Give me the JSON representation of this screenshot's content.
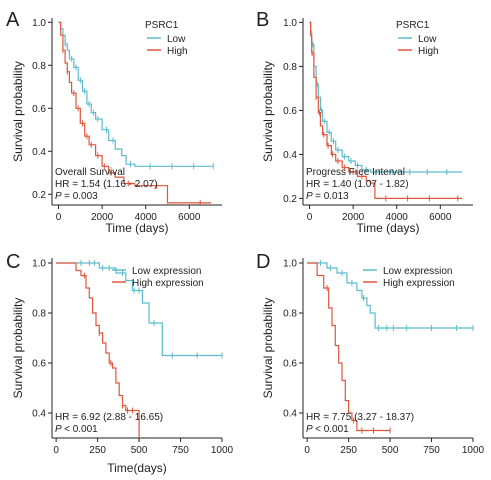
{
  "colors": {
    "low": "#5BBCCF",
    "high": "#E0553C",
    "axis": "#222222"
  },
  "chart_data": [
    {
      "type": "line",
      "panel_label": "A",
      "xlabel": "Time (days)",
      "ylabel": "Survival probability",
      "xlim": [
        -300,
        7500
      ],
      "ylim": [
        0.15,
        1.02
      ],
      "xticks": [
        0,
        2000,
        4000,
        6000
      ],
      "yticks": [
        0.2,
        0.4,
        0.6,
        0.8,
        1.0
      ],
      "ytick_labels": [
        "0.2",
        "0.4",
        "0.6",
        "0.8",
        "1.0"
      ],
      "legend": {
        "title": "PSRC1",
        "position": "top-right"
      },
      "annotation": [
        "Overall Survival",
        "HR = 1.54 (1.16 - 2.07)",
        "= 0.003"
      ],
      "series": [
        {
          "name": "Low",
          "color": "low",
          "x": [
            0,
            100,
            200,
            300,
            400,
            500,
            700,
            900,
            1100,
            1300,
            1500,
            1700,
            2000,
            2300,
            2600,
            2900,
            3100,
            3500,
            4000,
            5000,
            7100
          ],
          "y": [
            1.0,
            0.97,
            0.94,
            0.9,
            0.87,
            0.83,
            0.79,
            0.73,
            0.68,
            0.62,
            0.58,
            0.55,
            0.5,
            0.45,
            0.41,
            0.38,
            0.34,
            0.33,
            0.33,
            0.33,
            0.33
          ],
          "censored_x": [
            300,
            600,
            800,
            1000,
            1200,
            1400,
            1600,
            1800,
            2200,
            2500,
            3300,
            4200,
            5200,
            6200,
            7100
          ]
        },
        {
          "name": "High",
          "color": "high",
          "x": [
            0,
            100,
            200,
            300,
            400,
            500,
            600,
            800,
            1000,
            1200,
            1400,
            1700,
            2000,
            2300,
            2600,
            3000,
            3500,
            4000,
            5000,
            6000,
            7000
          ],
          "y": [
            1.0,
            0.94,
            0.87,
            0.81,
            0.77,
            0.72,
            0.67,
            0.6,
            0.53,
            0.47,
            0.43,
            0.38,
            0.33,
            0.3,
            0.28,
            0.25,
            0.24,
            0.24,
            0.16,
            0.16,
            0.16
          ],
          "censored_x": [
            200,
            400,
            700,
            900,
            1100,
            1300,
            1500,
            1800,
            2100,
            2400,
            3200,
            4500,
            6500
          ]
        }
      ]
    },
    {
      "type": "line",
      "panel_label": "B",
      "xlabel": "Time (days)",
      "ylabel": "Survival probability",
      "xlim": [
        -300,
        7500
      ],
      "ylim": [
        0.17,
        1.02
      ],
      "xticks": [
        0,
        2000,
        4000,
        6000
      ],
      "yticks": [
        0.2,
        0.4,
        0.6,
        0.8,
        1.0
      ],
      "ytick_labels": [
        "0.2",
        "0.4",
        "0.6",
        "0.8",
        "1.0"
      ],
      "legend": {
        "title": "PSRC1",
        "position": "top-right"
      },
      "annotation": [
        "Progress Free Interval",
        "HR = 1.40 (1.07 - 1.82)",
        "= 0.013"
      ],
      "series": [
        {
          "name": "Low",
          "color": "low",
          "x": [
            0,
            50,
            100,
            200,
            300,
            400,
            500,
            600,
            800,
            1000,
            1200,
            1500,
            1800,
            2100,
            2400,
            2800,
            3100,
            3500,
            4000,
            7000
          ],
          "y": [
            1.0,
            0.96,
            0.9,
            0.8,
            0.72,
            0.66,
            0.6,
            0.55,
            0.5,
            0.46,
            0.42,
            0.39,
            0.37,
            0.35,
            0.33,
            0.32,
            0.32,
            0.32,
            0.32,
            0.32
          ],
          "censored_x": [
            150,
            350,
            550,
            700,
            900,
            1100,
            1300,
            1600,
            1900,
            2200,
            2600,
            3200,
            3800,
            4600,
            5400,
            6300
          ]
        },
        {
          "name": "High",
          "color": "high",
          "x": [
            0,
            50,
            100,
            200,
            300,
            400,
            500,
            600,
            800,
            1000,
            1200,
            1500,
            1800,
            2200,
            2600,
            2800,
            3000,
            3200,
            7000
          ],
          "y": [
            1.0,
            0.94,
            0.86,
            0.75,
            0.66,
            0.59,
            0.53,
            0.49,
            0.44,
            0.4,
            0.37,
            0.34,
            0.32,
            0.3,
            0.28,
            0.27,
            0.2,
            0.2,
            0.2
          ],
          "censored_x": [
            120,
            300,
            450,
            650,
            850,
            1050,
            1300,
            1600,
            2000,
            2400,
            3500,
            4500,
            5500,
            6800
          ]
        }
      ]
    },
    {
      "type": "line",
      "panel_label": "C",
      "xlabel": "Time(days)",
      "ylabel": "Survival probability",
      "xlim": [
        -25,
        1000
      ],
      "ylim": [
        0.3,
        1.02
      ],
      "xticks": [
        0,
        250,
        500,
        750,
        1000
      ],
      "yticks": [
        0.4,
        0.6,
        0.8,
        1.0
      ],
      "ytick_labels": [
        "0.4",
        "0.6",
        "0.8",
        "1.0"
      ],
      "legend": {
        "position": "top-right"
      },
      "annotation": [
        "HR = 6.92 (2.88 - 16.65)",
        "< 0.001"
      ],
      "series": [
        {
          "name": "Low expression",
          "color": "low",
          "x": [
            0,
            260,
            360,
            420,
            460,
            520,
            560,
            640,
            1000
          ],
          "y": [
            1.0,
            0.98,
            0.96,
            0.93,
            0.89,
            0.84,
            0.76,
            0.63,
            0.63
          ],
          "censored_x": [
            150,
            200,
            230,
            280,
            320,
            400,
            470,
            500,
            590,
            700,
            850,
            1000
          ]
        },
        {
          "name": "High expression",
          "color": "high",
          "x": [
            0,
            120,
            150,
            180,
            200,
            220,
            240,
            260,
            280,
            300,
            320,
            340,
            360,
            380,
            400,
            420,
            450,
            500
          ],
          "y": [
            1.0,
            0.97,
            0.95,
            0.9,
            0.86,
            0.8,
            0.75,
            0.72,
            0.68,
            0.64,
            0.6,
            0.58,
            0.52,
            0.47,
            0.43,
            0.41,
            0.41,
            0.3
          ],
          "censored_x": [
            170,
            260,
            330,
            400,
            430,
            460
          ]
        }
      ]
    },
    {
      "type": "line",
      "panel_label": "D",
      "ylabel": "Survival probability",
      "xlim": [
        -25,
        1000
      ],
      "ylim": [
        0.3,
        1.02
      ],
      "xticks": [
        0,
        250,
        500,
        750,
        1000
      ],
      "yticks": [
        0.4,
        0.6,
        0.8,
        1.0
      ],
      "ytick_labels": [
        "0.4",
        "0.6",
        "0.8",
        "1.0"
      ],
      "legend": {
        "position": "top-right"
      },
      "annotation": [
        "HR = 7.75 (3.27 - 18.37)",
        "< 0.001"
      ],
      "series": [
        {
          "name": "Low expression",
          "color": "low",
          "x": [
            0,
            120,
            180,
            240,
            300,
            330,
            360,
            380,
            410,
            1000
          ],
          "y": [
            1.0,
            0.98,
            0.96,
            0.92,
            0.89,
            0.86,
            0.83,
            0.8,
            0.74,
            0.74
          ],
          "censored_x": [
            80,
            140,
            210,
            270,
            340,
            430,
            480,
            520,
            600,
            750,
            900,
            1000
          ]
        },
        {
          "name": "High expression",
          "color": "high",
          "x": [
            0,
            60,
            100,
            130,
            150,
            170,
            190,
            210,
            230,
            250,
            270,
            300,
            500
          ],
          "y": [
            1.0,
            0.95,
            0.9,
            0.82,
            0.75,
            0.67,
            0.6,
            0.53,
            0.45,
            0.4,
            0.37,
            0.33,
            0.33
          ],
          "censored_x": [
            120,
            280,
            330,
            400,
            500
          ]
        }
      ]
    }
  ]
}
